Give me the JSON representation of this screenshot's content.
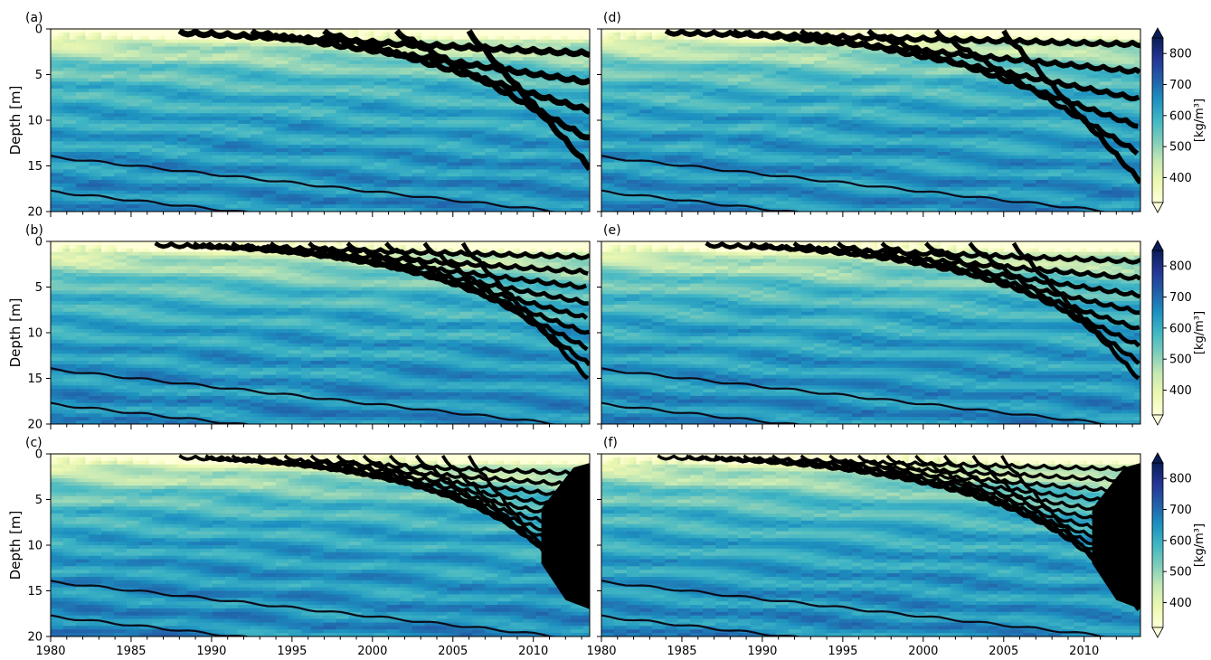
{
  "chart_data": {
    "type": "heatmap",
    "description_units": "snow density in firn, depth vs time",
    "x_ticks": [
      1980,
      1985,
      1990,
      1995,
      2000,
      2005,
      2010
    ],
    "xlim": [
      1980,
      2013.5
    ],
    "y_ticks": [
      0,
      5,
      10,
      15,
      20
    ],
    "ylim": [
      20,
      0
    ],
    "ylabel": "Depth [m]",
    "colorbar": {
      "label": "[kg/m³]",
      "ticks": [
        400,
        500,
        600,
        700,
        800
      ],
      "range": [
        320,
        850
      ],
      "extend": "both",
      "colormap": "YlGnBu",
      "stops": [
        "#ffffd9",
        "#edf8b1",
        "#c7e9b4",
        "#7fcdbb",
        "#41b6c4",
        "#1d91c0",
        "#225ea8",
        "#253494",
        "#081d58"
      ]
    },
    "ice_layer_color": "#000000",
    "panels": [
      {
        "label": "(a)",
        "layer_depth_start": 2.5,
        "layer_depth_end": 15.0,
        "layer_count": 5,
        "layer_onset_year": 1988.0,
        "layer_thickness": 0.55,
        "high_density_core": false
      },
      {
        "label": "(b)",
        "layer_depth_start": 1.5,
        "layer_depth_end": 15.0,
        "layer_count": 9,
        "layer_onset_year": 1986.5,
        "layer_thickness": 0.35,
        "high_density_core": false
      },
      {
        "label": "(c)",
        "layer_depth_start": 2.0,
        "layer_depth_end": 16.5,
        "layer_count": 12,
        "layer_onset_year": 1988.0,
        "layer_thickness": 0.25,
        "high_density_core": true
      },
      {
        "label": "(d)",
        "layer_depth_start": 1.5,
        "layer_depth_end": 16.5,
        "layer_count": 6,
        "layer_onset_year": 1984.0,
        "layer_thickness": 0.45,
        "high_density_core": false
      },
      {
        "label": "(e)",
        "layer_depth_start": 2.0,
        "layer_depth_end": 15.0,
        "layer_count": 8,
        "layer_onset_year": 1986.5,
        "layer_thickness": 0.35,
        "high_density_core": false
      },
      {
        "label": "(f)",
        "layer_depth_start": 1.5,
        "layer_depth_end": 17.0,
        "layer_count": 13,
        "layer_onset_year": 1983.5,
        "layer_thickness": 0.22,
        "high_density_core": true
      }
    ]
  }
}
